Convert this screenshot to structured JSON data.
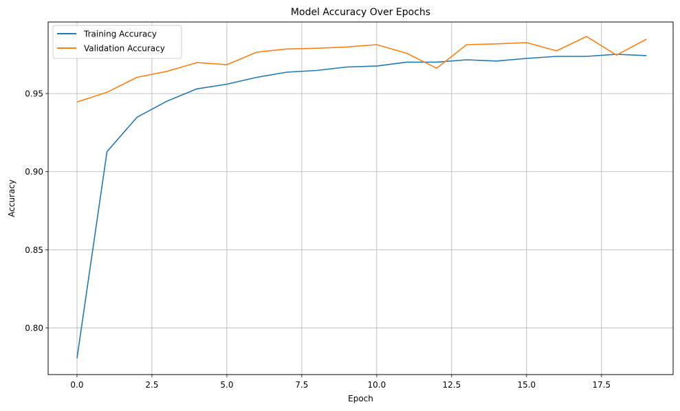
{
  "chart_data": {
    "type": "line",
    "title": "Model Accuracy Over Epochs",
    "xlabel": "Epoch",
    "ylabel": "Accuracy",
    "x": [
      0,
      1,
      2,
      3,
      4,
      5,
      6,
      7,
      8,
      9,
      10,
      11,
      12,
      13,
      14,
      15,
      16,
      17,
      18,
      19
    ],
    "series": [
      {
        "name": "Training Accuracy",
        "color": "#1f77b4",
        "values": [
          0.7806,
          0.9128,
          0.9348,
          0.9451,
          0.953,
          0.956,
          0.9604,
          0.9637,
          0.9648,
          0.967,
          0.9676,
          0.9701,
          0.9701,
          0.9716,
          0.9708,
          0.9725,
          0.9738,
          0.9738,
          0.9751,
          0.9743
        ]
      },
      {
        "name": "Validation Accuracy",
        "color": "#ff7f0e",
        "values": [
          0.9446,
          0.9508,
          0.9604,
          0.9642,
          0.9698,
          0.9685,
          0.9765,
          0.9785,
          0.979,
          0.9798,
          0.9813,
          0.9758,
          0.9662,
          0.9813,
          0.9818,
          0.9826,
          0.9773,
          0.9865,
          0.9746,
          0.9848
        ]
      }
    ],
    "xticks": [
      0.0,
      2.5,
      5.0,
      7.5,
      10.0,
      12.5,
      15.0,
      17.5
    ],
    "xtick_labels": [
      "0.0",
      "2.5",
      "5.0",
      "7.5",
      "10.0",
      "12.5",
      "15.0",
      "17.5"
    ],
    "yticks": [
      0.8,
      0.85,
      0.9,
      0.95
    ],
    "ytick_labels": [
      "0.80",
      "0.85",
      "0.90",
      "0.95"
    ],
    "xlim": [
      -0.963,
      19.89
    ],
    "ylim": [
      0.7701,
      0.9958
    ],
    "grid": true,
    "legend_position": "upper left"
  }
}
